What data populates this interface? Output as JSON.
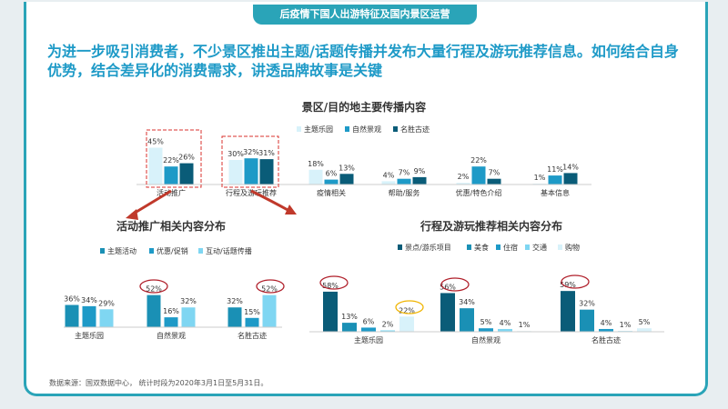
{
  "header": {
    "tab_title": "后疫情下国人出游特征及国内景区运营"
  },
  "headline": "为进一步吸引消费者，不少景区推出主题/话题传播并发布大量行程及游玩推荐信息。如何结合自身优势，结合差异化的消费需求，讲透品牌故事是关键",
  "source": "数据来源：国双数据中心， 统计时段为2020年3月1日至5月31日。",
  "colors": {
    "dark": "#0a5c78",
    "mid": "#1e9ac7",
    "light": "#7fd6f2",
    "pale": "#d8f2fa",
    "teal": "#1a90b5"
  },
  "chart_data": [
    {
      "type": "bar",
      "title": "景区/目的地主要传播内容",
      "categories": [
        "活动推广",
        "行程及游玩推荐",
        "疫情相关",
        "帮助/服务",
        "优惠/特色介绍",
        "基本信息"
      ],
      "series": [
        {
          "name": "主题乐园",
          "values": [
            45,
            30,
            18,
            4,
            2,
            1
          ]
        },
        {
          "name": "自然景观",
          "values": [
            22,
            32,
            6,
            7,
            22,
            11
          ]
        },
        {
          "name": "名胜古迹",
          "values": [
            26,
            31,
            13,
            9,
            7,
            14
          ]
        }
      ]
    },
    {
      "type": "bar",
      "title": "活动推广相关内容分布",
      "categories": [
        "主题乐园",
        "自然景观",
        "名胜古迹"
      ],
      "series": [
        {
          "name": "主题活动",
          "values": [
            36,
            52,
            32
          ]
        },
        {
          "name": "优惠/促销",
          "values": [
            34,
            16,
            15
          ]
        },
        {
          "name": "互动/话题传播",
          "values": [
            29,
            32,
            52
          ]
        }
      ]
    },
    {
      "type": "bar",
      "title": "行程及游玩推荐相关内容分布",
      "categories": [
        "主题乐园",
        "自然景观",
        "名胜古迹"
      ],
      "series": [
        {
          "name": "景点/游乐项目",
          "values": [
            58,
            56,
            59
          ]
        },
        {
          "name": "美食",
          "values": [
            13,
            34,
            32
          ]
        },
        {
          "name": "住宿",
          "values": [
            6,
            5,
            4
          ]
        },
        {
          "name": "交通",
          "values": [
            2,
            4,
            1
          ]
        },
        {
          "name": "购物",
          "values": [
            22,
            1,
            5
          ]
        }
      ]
    }
  ]
}
